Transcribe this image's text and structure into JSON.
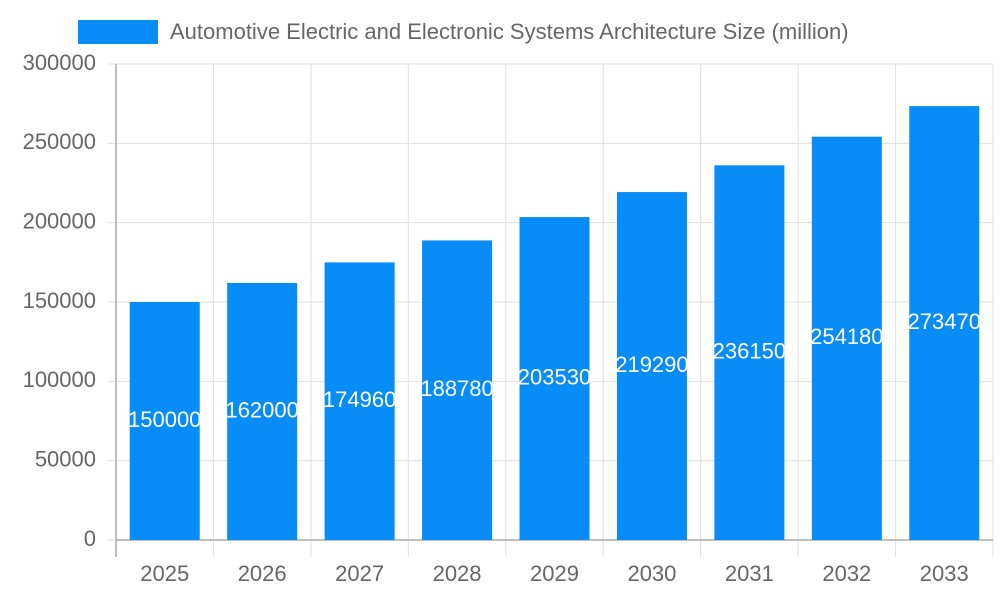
{
  "chart_data": {
    "type": "bar",
    "categories": [
      "2025",
      "2026",
      "2027",
      "2028",
      "2029",
      "2030",
      "2031",
      "2032",
      "2033"
    ],
    "series": [
      {
        "name": "Automotive Electric and Electronic Systems Architecture Size (million)",
        "color": "#078cf8",
        "values": [
          150000,
          162000,
          174960,
          188780,
          203530,
          219290,
          236150,
          254180,
          273470
        ]
      }
    ],
    "ylim": [
      0,
      300000
    ],
    "yticks": [
      0,
      50000,
      100000,
      150000,
      200000,
      250000,
      300000
    ],
    "grid": true,
    "data_labels": true,
    "legend": "top"
  }
}
